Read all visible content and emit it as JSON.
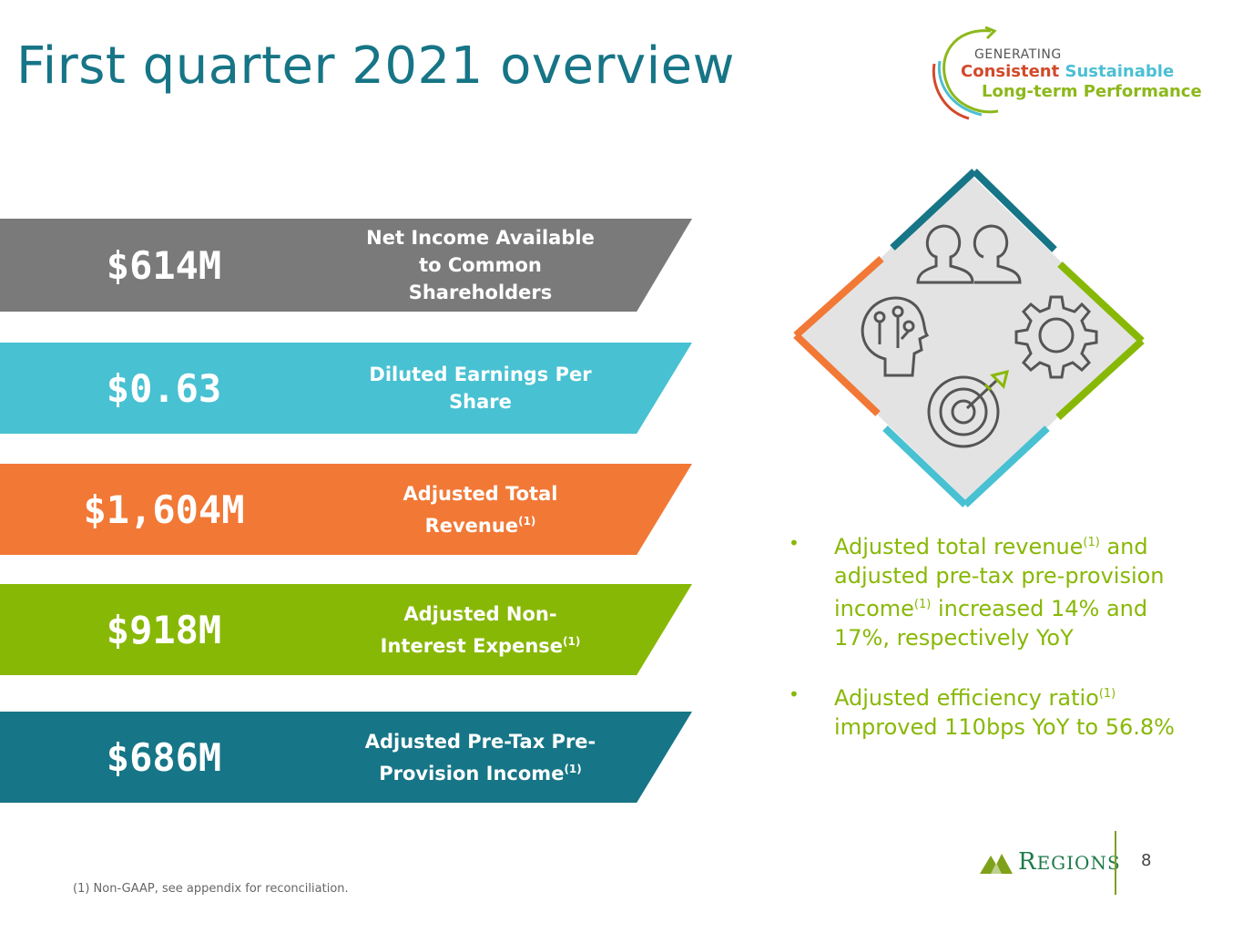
{
  "title": "First quarter 2021 overview",
  "tagline": {
    "generating": "GENERATING",
    "consistent": "Consistent",
    "sustainable": "Sustainable",
    "long_term": "Long-term Performance"
  },
  "metrics": [
    {
      "value": "$614M",
      "label": "Net Income Available to Common Shareholders",
      "sup": ""
    },
    {
      "value": "$0.63",
      "label": "Diluted Earnings Per Share",
      "sup": ""
    },
    {
      "value": "$1,604M",
      "label_a": "Adjusted Total",
      "label_b": "Revenue",
      "sup": "(1)"
    },
    {
      "value": "$918M",
      "label_a": "Adjusted Non-",
      "label_b": "Interest Expense",
      "sup": "(1)"
    },
    {
      "value": "$686M",
      "label_a": "Adjusted Pre-Tax Pre-",
      "label_b": "Provision Income",
      "sup": "(1)"
    }
  ],
  "colors": {
    "title": "#167586",
    "gray": "#7a7a7a",
    "cyan": "#48c1d2",
    "orange": "#f27836",
    "green": "#88b806",
    "teal": "#167586"
  },
  "diamond_icons": [
    "people-icon",
    "gear-icon",
    "target-icon",
    "brain-icon"
  ],
  "bullets": [
    {
      "p1": "Adjusted total revenue",
      "s1": "(1)",
      "p2": " and adjusted pre-tax pre-provision income",
      "s2": "(1)",
      "p3": " increased 14% and 17%, respectively YoY"
    },
    {
      "p1": "Adjusted efficiency ratio",
      "s1": "(1)",
      "p2": " improved 110bps YoY to 56.8%"
    }
  ],
  "bullet_char": "•",
  "footnote": "(1) Non-GAAP, see appendix for reconciliation.",
  "logo": {
    "initial": "R",
    "rest": "EGIONS"
  },
  "page_number": "8"
}
